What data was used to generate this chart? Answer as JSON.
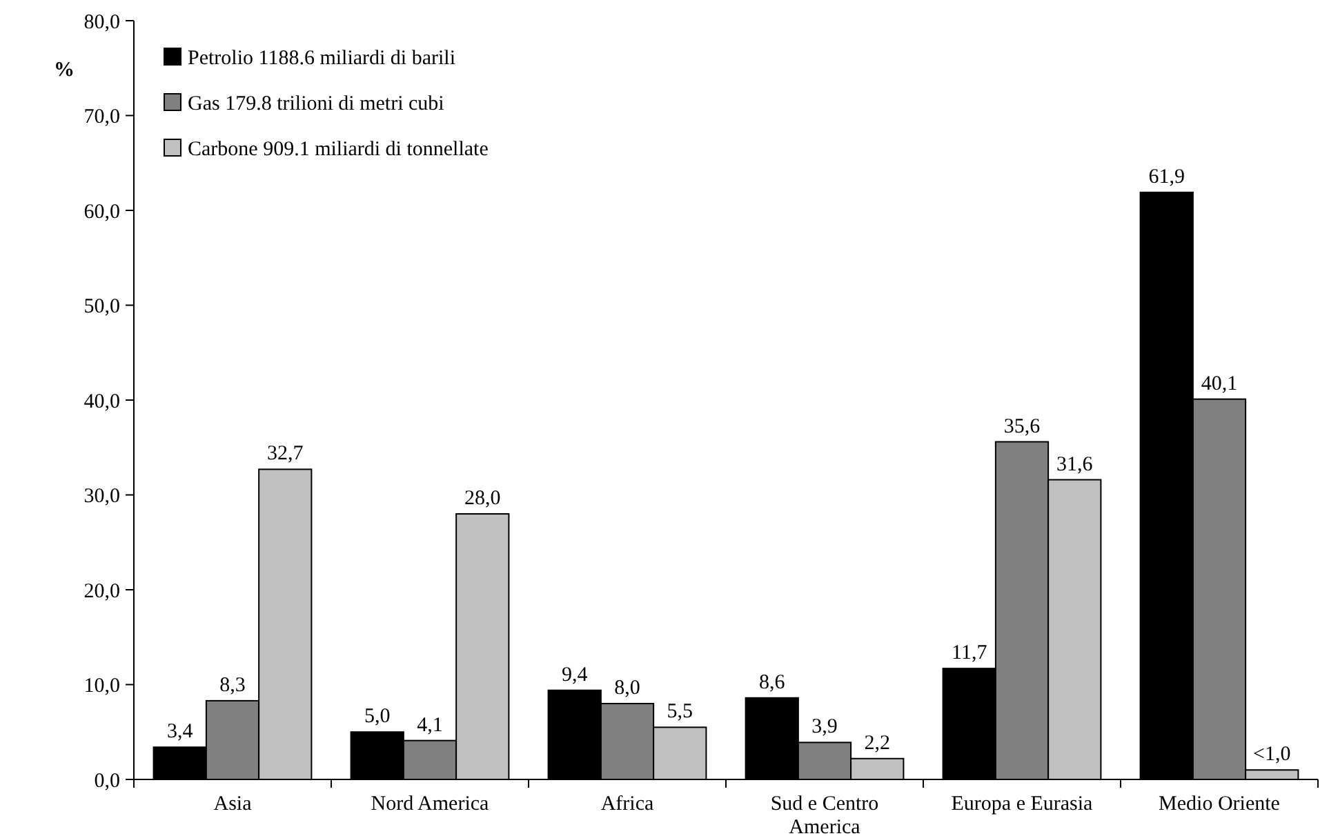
{
  "chart_data": {
    "type": "bar",
    "ylabel": "%",
    "categories": [
      "Asia",
      "Nord America",
      "Africa",
      "Sud e Centro America",
      "Europa e Eurasia",
      "Medio Oriente"
    ],
    "series": [
      {
        "name": "Petrolio 1188.6 miliardi di barili",
        "color": "#000000",
        "values": [
          3.4,
          5.0,
          9.4,
          8.6,
          11.7,
          61.9
        ],
        "value_labels": [
          "3,4",
          "5,0",
          "9,4",
          "8,6",
          "11,7",
          "61,9"
        ]
      },
      {
        "name": "Gas 179.8 trilioni di metri cubi",
        "color": "#808080",
        "values": [
          8.3,
          4.1,
          8.0,
          3.9,
          35.6,
          40.1
        ],
        "value_labels": [
          "8,3",
          "4,1",
          "8,0",
          "3,9",
          "35,6",
          "40,1"
        ]
      },
      {
        "name": "Carbone 909.1 miliardi di tonnellate",
        "color": "#c0c0c0",
        "values": [
          32.7,
          28.0,
          5.5,
          2.2,
          31.6,
          1.0
        ],
        "value_labels": [
          "32,7",
          "28,0",
          "5,5",
          "2,2",
          "31,6",
          "<1,0"
        ]
      }
    ],
    "ylim": [
      0,
      80
    ],
    "yticks": [
      {
        "value": 0,
        "label": "0,0"
      },
      {
        "value": 10,
        "label": "10,0"
      },
      {
        "value": 20,
        "label": "20,0"
      },
      {
        "value": 30,
        "label": "30,0"
      },
      {
        "value": 40,
        "label": "40,0"
      },
      {
        "value": 50,
        "label": "50,0"
      },
      {
        "value": 60,
        "label": "60,0"
      },
      {
        "value": 70,
        "label": "70,0"
      },
      {
        "value": 80,
        "label": "80,0"
      }
    ],
    "grid": false,
    "legend": "top left"
  }
}
